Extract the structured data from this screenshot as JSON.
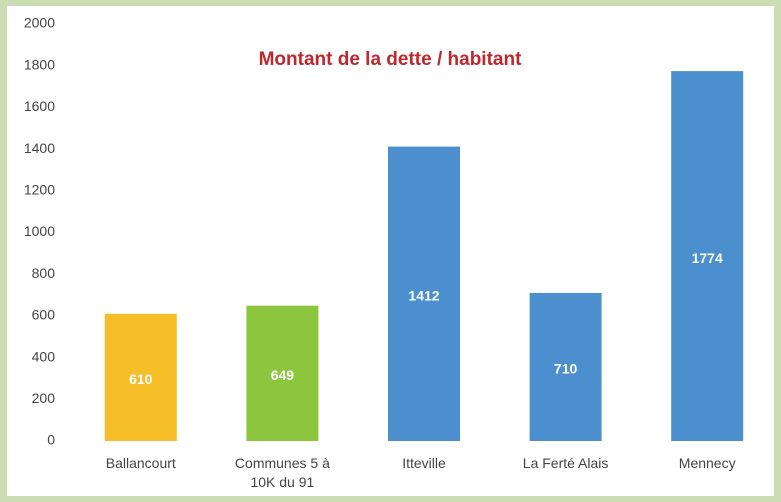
{
  "chart_data": {
    "type": "bar",
    "title": "Montant de la dette / habitant",
    "categories": [
      "Ballancourt",
      "Communes 5 à 10K du 91",
      "Itteville",
      "La Ferté Alais",
      "Mennecy"
    ],
    "values": [
      610,
      649,
      1412,
      710,
      1774
    ],
    "colors": [
      "#f5bd27",
      "#8cc63e",
      "#4b8fcf",
      "#4b8fcf",
      "#4b8fcf"
    ],
    "ylim": [
      0,
      2000
    ],
    "yticks": [
      0,
      200,
      400,
      600,
      800,
      1000,
      1200,
      1400,
      1600,
      1800,
      2000
    ],
    "grid": false
  }
}
